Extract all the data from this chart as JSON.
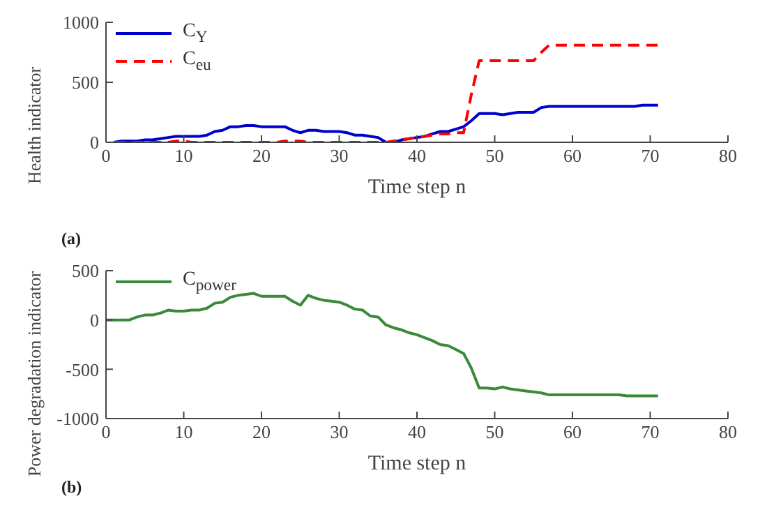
{
  "chart_data": [
    {
      "type": "line",
      "xlabel": "Time step n",
      "ylabel": "Health indicator",
      "annotations": [
        "(a)"
      ],
      "x": [
        1,
        2,
        3,
        4,
        5,
        6,
        7,
        8,
        9,
        10,
        11,
        12,
        13,
        14,
        15,
        16,
        17,
        18,
        19,
        20,
        21,
        22,
        23,
        24,
        25,
        26,
        27,
        28,
        29,
        30,
        31,
        32,
        33,
        34,
        35,
        36,
        37,
        38,
        39,
        40,
        41,
        42,
        43,
        44,
        45,
        46,
        47,
        48,
        49,
        50,
        51,
        52,
        53,
        54,
        55,
        56,
        57,
        58,
        59,
        60,
        61,
        62,
        63,
        64,
        65,
        66,
        67,
        68,
        69,
        70,
        71
      ],
      "series": [
        {
          "name": "C$_{Y}$",
          "color": "#0000cc",
          "line_style": "solid",
          "values": [
            0,
            10,
            10,
            10,
            20,
            20,
            30,
            40,
            50,
            50,
            50,
            50,
            60,
            90,
            100,
            130,
            130,
            140,
            140,
            130,
            130,
            130,
            130,
            100,
            80,
            100,
            100,
            90,
            90,
            90,
            80,
            60,
            60,
            50,
            40,
            0,
            0,
            20,
            30,
            40,
            50,
            70,
            90,
            90,
            110,
            130,
            180,
            240,
            240,
            240,
            230,
            240,
            250,
            250,
            250,
            290,
            300,
            300,
            300,
            300,
            300,
            300,
            300,
            300,
            300,
            300,
            300,
            300,
            310,
            310,
            310
          ]
        },
        {
          "name": "C$_{eu}$",
          "color": "#ff0000",
          "line_style": "dashed",
          "values": [
            0,
            0,
            0,
            0,
            0,
            0,
            0,
            0,
            10,
            10,
            0,
            0,
            0,
            0,
            0,
            0,
            0,
            0,
            0,
            0,
            0,
            0,
            10,
            10,
            10,
            0,
            0,
            0,
            0,
            0,
            0,
            0,
            0,
            0,
            0,
            0,
            10,
            20,
            30,
            40,
            50,
            60,
            70,
            70,
            80,
            80,
            400,
            680,
            680,
            680,
            680,
            680,
            680,
            680,
            680,
            750,
            810,
            810,
            810,
            810,
            810,
            810,
            810,
            810,
            810,
            810,
            810,
            810,
            810,
            810,
            810
          ]
        }
      ],
      "xlim": [
        0,
        80
      ],
      "xticks": [
        0,
        10,
        20,
        30,
        40,
        50,
        60,
        70,
        80
      ],
      "ylim": [
        0,
        1000
      ],
      "yticks": [
        0,
        500,
        1000
      ],
      "grid": false,
      "legend": "top left"
    },
    {
      "type": "line",
      "xlabel": "Time step n",
      "ylabel": "Power degradation indicator",
      "annotations": [
        "(b)"
      ],
      "x": [
        0,
        1,
        2,
        3,
        4,
        5,
        6,
        7,
        8,
        9,
        10,
        11,
        12,
        13,
        14,
        15,
        16,
        17,
        18,
        19,
        20,
        21,
        22,
        23,
        24,
        25,
        26,
        27,
        28,
        29,
        30,
        31,
        32,
        33,
        34,
        35,
        36,
        37,
        38,
        39,
        40,
        41,
        42,
        43,
        44,
        45,
        46,
        47,
        48,
        49,
        50,
        51,
        52,
        53,
        54,
        55,
        56,
        57,
        58,
        59,
        60,
        61,
        62,
        63,
        64,
        65,
        66,
        67,
        68,
        69,
        70,
        71
      ],
      "series": [
        {
          "name": "C$_{power}$",
          "color": "#3a8a3a",
          "line_style": "solid",
          "values": [
            0,
            0,
            0,
            0,
            30,
            50,
            50,
            70,
            100,
            90,
            90,
            100,
            100,
            120,
            170,
            180,
            230,
            250,
            260,
            270,
            240,
            240,
            240,
            240,
            190,
            150,
            250,
            220,
            200,
            190,
            180,
            150,
            110,
            100,
            40,
            30,
            -50,
            -80,
            -100,
            -130,
            -150,
            -180,
            -210,
            -250,
            -260,
            -300,
            -340,
            -490,
            -690,
            -690,
            -700,
            -680,
            -700,
            -710,
            -720,
            -730,
            -740,
            -760,
            -760,
            -760,
            -760,
            -760,
            -760,
            -760,
            -760,
            -760,
            -760,
            -770,
            -770,
            -770,
            -770,
            -770
          ]
        }
      ],
      "xlim": [
        0,
        80
      ],
      "xticks": [
        0,
        10,
        20,
        30,
        40,
        50,
        60,
        70,
        80
      ],
      "ylim": [
        -1000,
        500
      ],
      "yticks": [
        -1000,
        -500,
        0,
        500
      ],
      "grid": false,
      "legend": "top left"
    }
  ]
}
